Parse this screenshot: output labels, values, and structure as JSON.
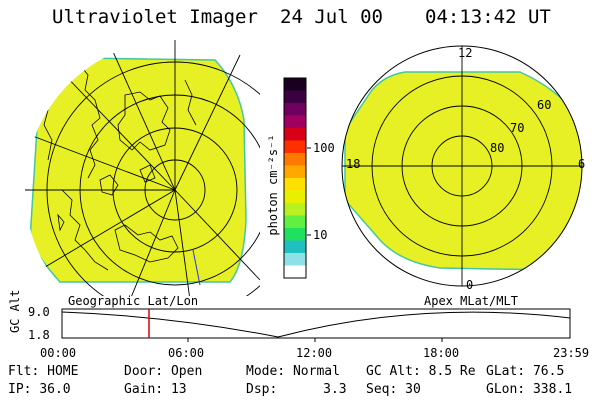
{
  "header": {
    "instrument": "Ultraviolet Imager",
    "date": "24 Jul 00",
    "time": "04:13:42 UT"
  },
  "left_panel": {
    "caption": "Geographic Lat/Lon",
    "fill_color": "#e6f024"
  },
  "right_panel": {
    "caption": "Apex MLat/MLT",
    "fill_color": "#e6f024",
    "mlt_labels": {
      "top": "12",
      "bottom": "0",
      "left": "18",
      "right": "6"
    },
    "lat_labels": [
      "60",
      "70",
      "80"
    ]
  },
  "colorbar": {
    "units": "photon cm⁻²s⁻¹",
    "ticks": [
      "100",
      "10"
    ],
    "colors_top_to_bottom": [
      "#1a0020",
      "#3a0040",
      "#700060",
      "#a00060",
      "#d80018",
      "#ff3000",
      "#ff7800",
      "#ffa800",
      "#ffe000",
      "#e8f000",
      "#b8f020",
      "#60f040",
      "#20e060",
      "#20c0c0",
      "#90e0e8",
      "#ffffff"
    ]
  },
  "altitude_plot": {
    "ylabel": "GC Alt",
    "yticks": [
      "9.0",
      "1.8"
    ],
    "xticks": [
      "00:00",
      "06:00",
      "12:00",
      "18:00",
      "23:59"
    ],
    "marker_color": "#e00000"
  },
  "status": {
    "row1": [
      {
        "key": "Flt:",
        "value": "HOME"
      },
      {
        "key": "Door:",
        "value": "Open"
      },
      {
        "key": "Mode:",
        "value": "Normal"
      },
      {
        "key": "GC Alt:",
        "value": "8.5 Re"
      },
      {
        "key": "GLat:",
        "value": "76.5"
      }
    ],
    "row2": [
      {
        "key": "IP:",
        "value": "36.0"
      },
      {
        "key": "Gain:",
        "value": "13"
      },
      {
        "key": "Dsp:",
        "value": "3.3"
      },
      {
        "key": "Seq:",
        "value": "30"
      },
      {
        "key": "GLon:",
        "value": "338.1"
      }
    ]
  }
}
